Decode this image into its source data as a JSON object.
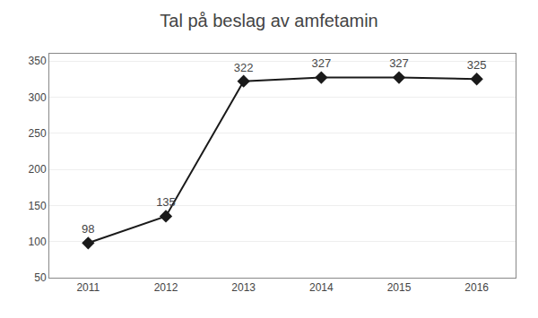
{
  "chart_data": {
    "type": "line",
    "title": "Tal på beslag av amfetamin",
    "x": [
      2011,
      2012,
      2013,
      2014,
      2015,
      2016
    ],
    "values": [
      98,
      135,
      322,
      327,
      327,
      325
    ],
    "xlim": [
      2010.5,
      2016.5
    ],
    "xticks": [
      2011,
      2012,
      2013,
      2014,
      2015,
      2016
    ],
    "ylim": [
      50,
      360
    ],
    "yticks": [
      50,
      100,
      150,
      200,
      250,
      300,
      350
    ],
    "grid": true,
    "color": "#1a1a1a",
    "marker": "diamond",
    "data_labels": true
  }
}
